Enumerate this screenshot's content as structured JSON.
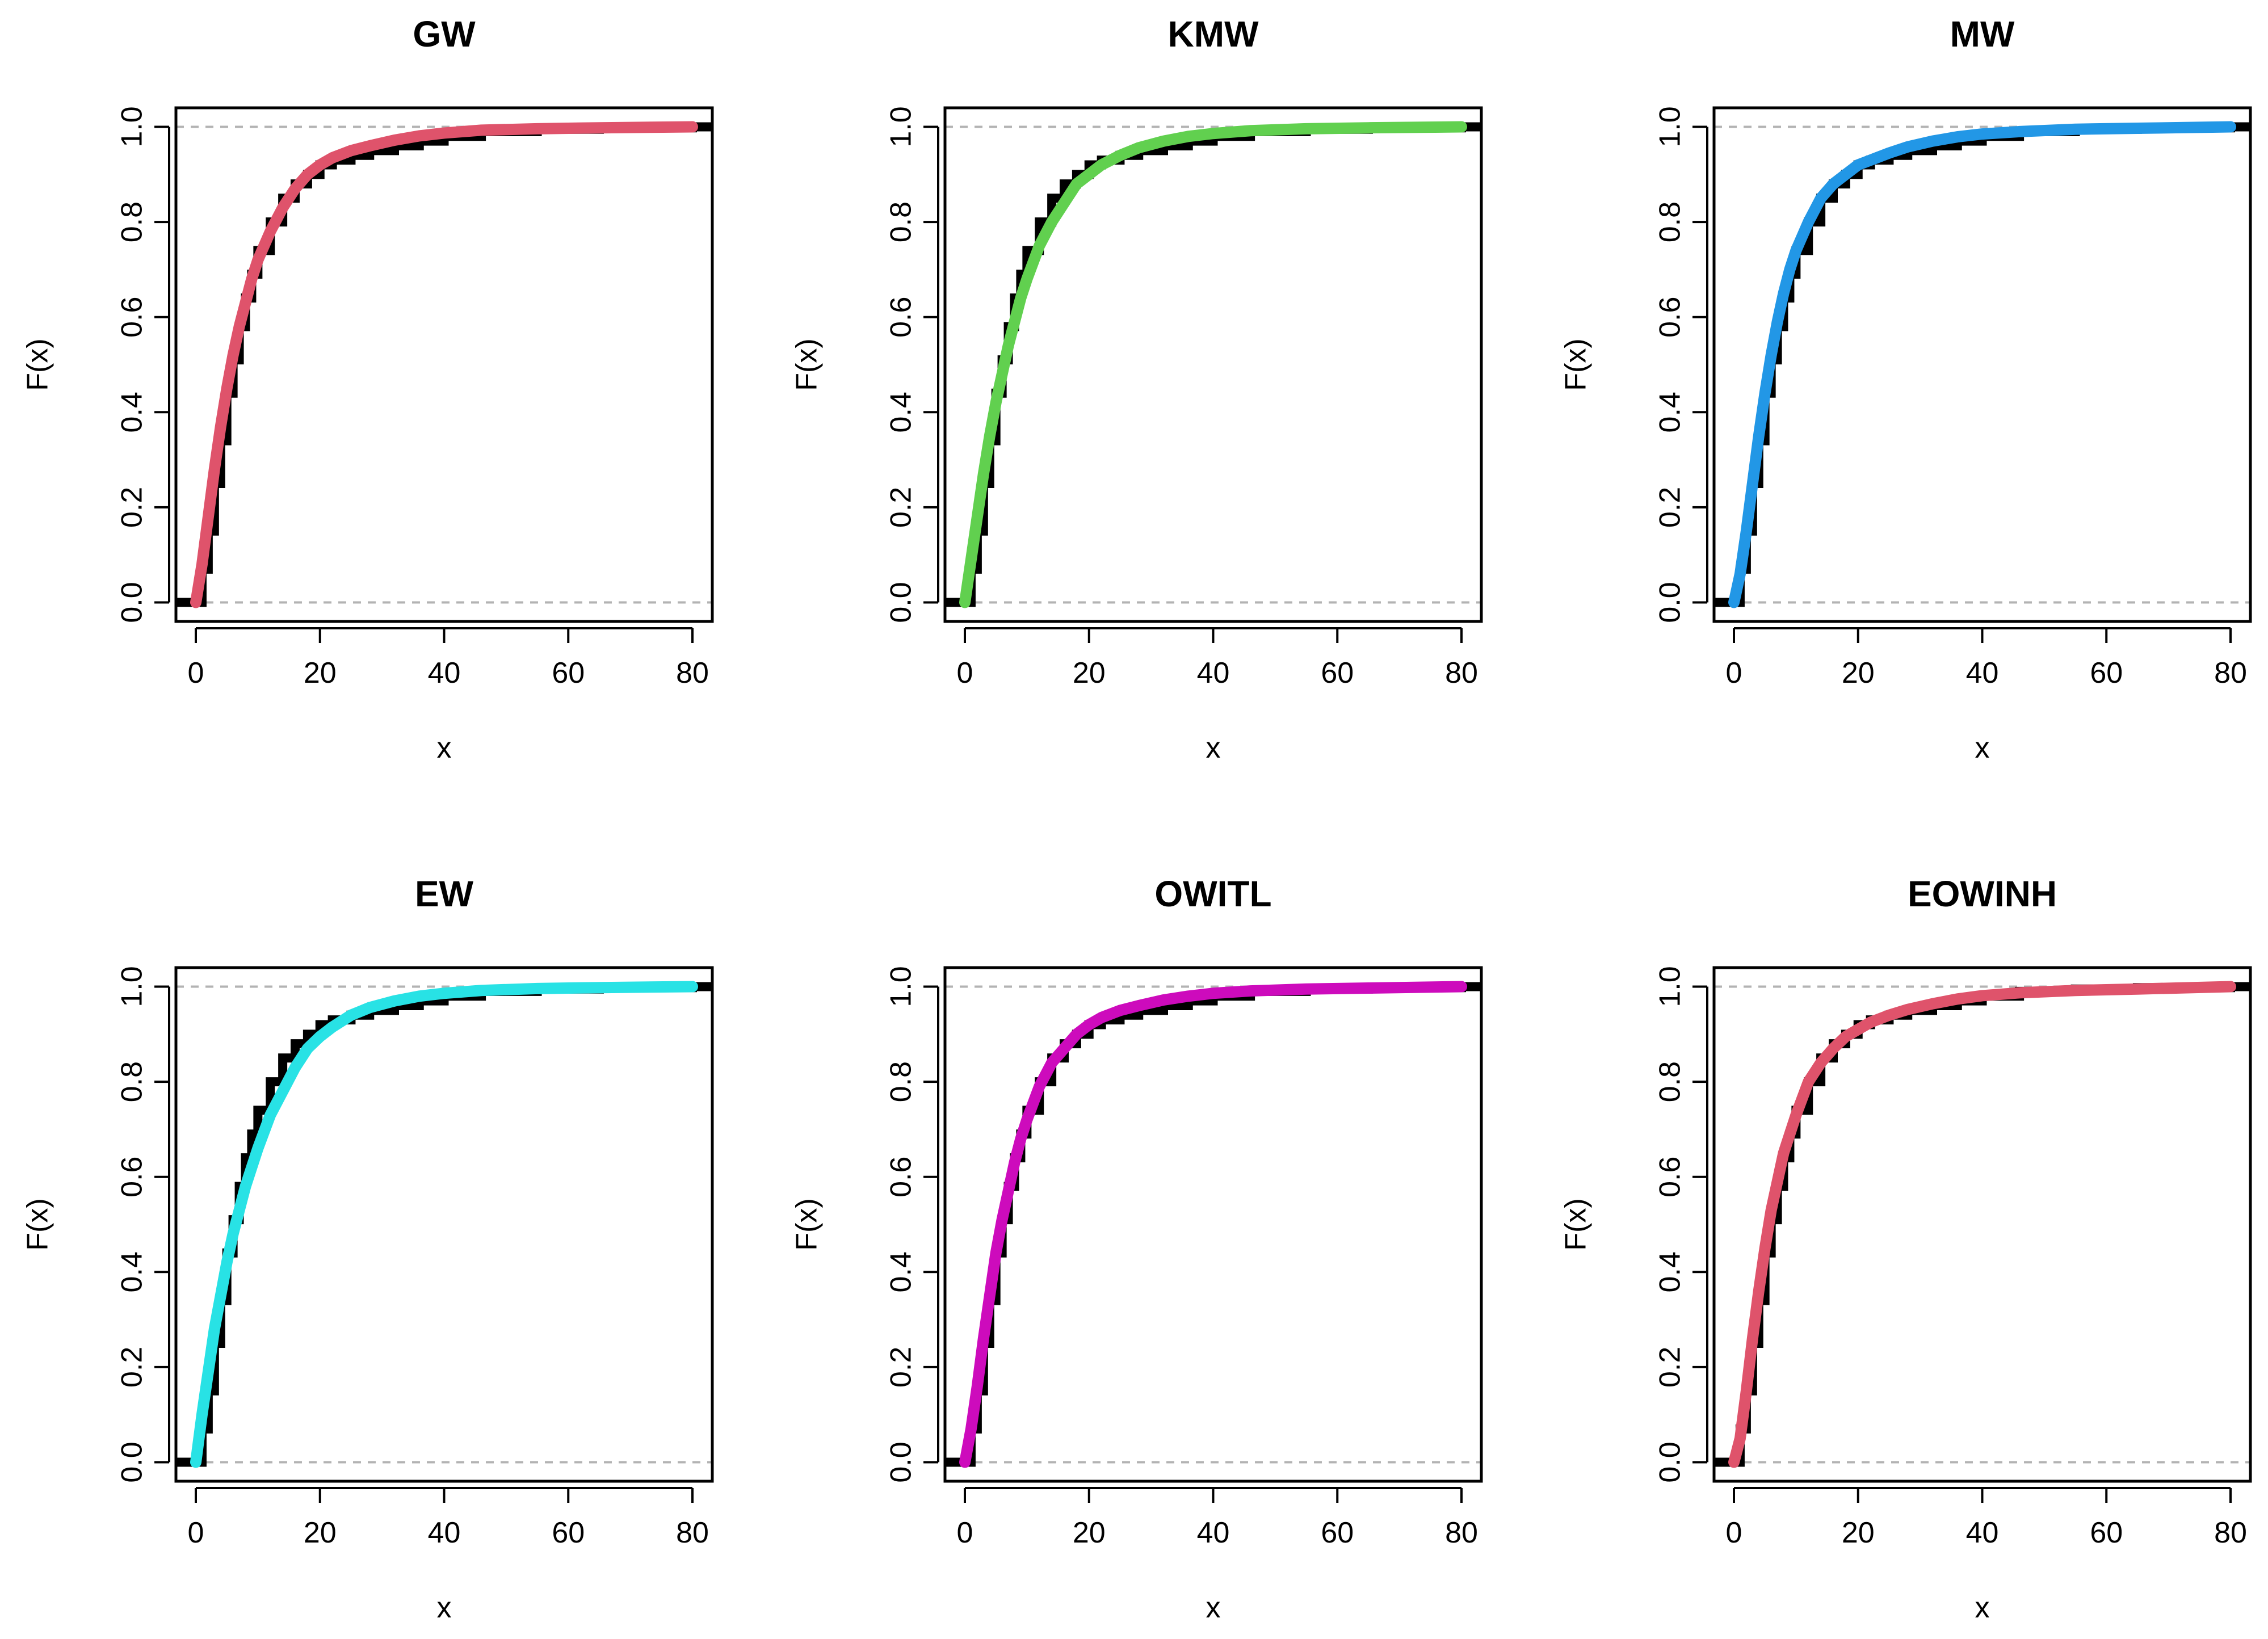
{
  "chart_data": [
    {
      "type": "line",
      "title": "GW",
      "xlabel": "x",
      "ylabel": "F(x)",
      "xlim": [
        0,
        80
      ],
      "ylim": [
        0,
        1
      ],
      "x_ticks": [
        0,
        20,
        40,
        60,
        80
      ],
      "y_ticks": [
        0.0,
        0.2,
        0.4,
        0.6,
        0.8,
        1.0
      ],
      "x_tick_labels": [
        "0",
        "20",
        "40",
        "60",
        "80"
      ],
      "y_tick_labels": [
        "0.0",
        "0.2",
        "0.4",
        "0.6",
        "0.8",
        "1.0"
      ],
      "reference_lines": [
        0,
        1
      ],
      "series": [
        {
          "name": "Empirical CDF",
          "color": "#000000",
          "x": [
            0,
            1,
            2,
            3,
            4,
            5,
            6,
            7,
            8,
            9,
            10,
            12,
            14,
            16,
            18,
            20,
            22,
            25,
            28,
            32,
            36,
            40,
            46,
            55,
            65,
            80
          ],
          "y": [
            0.0,
            0.07,
            0.15,
            0.25,
            0.34,
            0.44,
            0.51,
            0.58,
            0.64,
            0.69,
            0.74,
            0.8,
            0.85,
            0.88,
            0.9,
            0.92,
            0.93,
            0.94,
            0.95,
            0.96,
            0.97,
            0.98,
            0.99,
            0.995,
            0.998,
            1.0
          ]
        },
        {
          "name": "GW",
          "color": "#df536b",
          "x": [
            0,
            1,
            2,
            3,
            4,
            5,
            6,
            7,
            8,
            9,
            10,
            12,
            14,
            16,
            18,
            20,
            22,
            25,
            28,
            32,
            36,
            40,
            46,
            55,
            65,
            80
          ],
          "y": [
            0.0,
            0.08,
            0.18,
            0.28,
            0.37,
            0.45,
            0.52,
            0.58,
            0.63,
            0.68,
            0.72,
            0.78,
            0.83,
            0.87,
            0.9,
            0.92,
            0.935,
            0.95,
            0.96,
            0.972,
            0.981,
            0.987,
            0.993,
            0.996,
            0.998,
            1.0
          ]
        }
      ]
    },
    {
      "type": "line",
      "title": "KMW",
      "xlabel": "x",
      "ylabel": "F(x)",
      "xlim": [
        0,
        80
      ],
      "ylim": [
        0,
        1
      ],
      "x_ticks": [
        0,
        20,
        40,
        60,
        80
      ],
      "y_ticks": [
        0.0,
        0.2,
        0.4,
        0.6,
        0.8,
        1.0
      ],
      "x_tick_labels": [
        "0",
        "20",
        "40",
        "60",
        "80"
      ],
      "y_tick_labels": [
        "0.0",
        "0.2",
        "0.4",
        "0.6",
        "0.8",
        "1.0"
      ],
      "reference_lines": [
        0,
        1
      ],
      "series": [
        {
          "name": "Empirical CDF",
          "color": "#000000",
          "x": [
            0,
            1,
            2,
            3,
            4,
            5,
            6,
            7,
            8,
            9,
            10,
            12,
            14,
            16,
            18,
            20,
            22,
            25,
            28,
            32,
            36,
            40,
            46,
            55,
            65,
            80
          ],
          "y": [
            0.0,
            0.07,
            0.15,
            0.25,
            0.34,
            0.44,
            0.51,
            0.58,
            0.64,
            0.69,
            0.74,
            0.8,
            0.85,
            0.88,
            0.9,
            0.92,
            0.93,
            0.94,
            0.95,
            0.96,
            0.97,
            0.98,
            0.99,
            0.995,
            0.998,
            1.0
          ]
        },
        {
          "name": "KMW",
          "color": "#61d04f",
          "x": [
            0,
            1,
            2,
            3,
            4,
            5,
            6,
            7,
            8,
            9,
            10,
            12,
            14,
            16,
            18,
            20,
            22,
            25,
            28,
            32,
            36,
            40,
            46,
            55,
            65,
            80
          ],
          "y": [
            0.0,
            0.09,
            0.18,
            0.27,
            0.35,
            0.42,
            0.48,
            0.54,
            0.59,
            0.64,
            0.68,
            0.75,
            0.8,
            0.84,
            0.88,
            0.9,
            0.92,
            0.94,
            0.956,
            0.97,
            0.98,
            0.986,
            0.992,
            0.996,
            0.998,
            1.0
          ]
        }
      ]
    },
    {
      "type": "line",
      "title": "MW",
      "xlabel": "x",
      "ylabel": "F(x)",
      "xlim": [
        0,
        80
      ],
      "ylim": [
        0,
        1
      ],
      "x_ticks": [
        0,
        20,
        40,
        60,
        80
      ],
      "y_ticks": [
        0.0,
        0.2,
        0.4,
        0.6,
        0.8,
        1.0
      ],
      "x_tick_labels": [
        "0",
        "20",
        "40",
        "60",
        "80"
      ],
      "y_tick_labels": [
        "0.0",
        "0.2",
        "0.4",
        "0.6",
        "0.8",
        "1.0"
      ],
      "reference_lines": [
        0,
        1
      ],
      "series": [
        {
          "name": "Empirical CDF",
          "color": "#000000",
          "x": [
            0,
            1,
            2,
            3,
            4,
            5,
            6,
            7,
            8,
            9,
            10,
            12,
            14,
            16,
            18,
            20,
            22,
            25,
            28,
            32,
            36,
            40,
            46,
            55,
            65,
            80
          ],
          "y": [
            0.0,
            0.07,
            0.15,
            0.25,
            0.34,
            0.44,
            0.51,
            0.58,
            0.64,
            0.69,
            0.74,
            0.8,
            0.85,
            0.88,
            0.9,
            0.92,
            0.93,
            0.94,
            0.95,
            0.96,
            0.97,
            0.98,
            0.99,
            0.995,
            0.998,
            1.0
          ]
        },
        {
          "name": "MW",
          "color": "#2297e6",
          "x": [
            0,
            1,
            2,
            3,
            4,
            5,
            6,
            7,
            8,
            9,
            10,
            12,
            14,
            16,
            18,
            20,
            22,
            25,
            28,
            32,
            36,
            40,
            46,
            55,
            65,
            80
          ],
          "y": [
            0.0,
            0.06,
            0.15,
            0.25,
            0.35,
            0.44,
            0.52,
            0.59,
            0.65,
            0.7,
            0.74,
            0.8,
            0.85,
            0.88,
            0.9,
            0.92,
            0.93,
            0.945,
            0.958,
            0.97,
            0.979,
            0.985,
            0.99,
            0.995,
            0.997,
            1.0
          ]
        }
      ]
    },
    {
      "type": "line",
      "title": "EW",
      "xlabel": "x",
      "ylabel": "F(x)",
      "xlim": [
        0,
        80
      ],
      "ylim": [
        0,
        1
      ],
      "x_ticks": [
        0,
        20,
        40,
        60,
        80
      ],
      "y_ticks": [
        0.0,
        0.2,
        0.4,
        0.6,
        0.8,
        1.0
      ],
      "x_tick_labels": [
        "0",
        "20",
        "40",
        "60",
        "80"
      ],
      "y_tick_labels": [
        "0.0",
        "0.2",
        "0.4",
        "0.6",
        "0.8",
        "1.0"
      ],
      "reference_lines": [
        0,
        1
      ],
      "series": [
        {
          "name": "Empirical CDF",
          "color": "#000000",
          "x": [
            0,
            1,
            2,
            3,
            4,
            5,
            6,
            7,
            8,
            9,
            10,
            12,
            14,
            16,
            18,
            20,
            22,
            25,
            28,
            32,
            36,
            40,
            46,
            55,
            65,
            80
          ],
          "y": [
            0.0,
            0.07,
            0.15,
            0.25,
            0.34,
            0.44,
            0.51,
            0.58,
            0.64,
            0.69,
            0.74,
            0.8,
            0.85,
            0.88,
            0.9,
            0.92,
            0.93,
            0.94,
            0.95,
            0.96,
            0.97,
            0.98,
            0.99,
            0.995,
            0.998,
            1.0
          ]
        },
        {
          "name": "EW",
          "color": "#28e2e5",
          "x": [
            0,
            1,
            2,
            3,
            4,
            5,
            6,
            7,
            8,
            9,
            10,
            12,
            14,
            16,
            18,
            20,
            22,
            25,
            28,
            32,
            36,
            40,
            46,
            55,
            65,
            80
          ],
          "y": [
            0.0,
            0.1,
            0.19,
            0.28,
            0.35,
            0.42,
            0.48,
            0.53,
            0.58,
            0.62,
            0.66,
            0.73,
            0.78,
            0.83,
            0.87,
            0.895,
            0.915,
            0.94,
            0.956,
            0.97,
            0.98,
            0.986,
            0.992,
            0.996,
            0.998,
            1.0
          ]
        }
      ]
    },
    {
      "type": "line",
      "title": "OWITL",
      "xlabel": "x",
      "ylabel": "F(x)",
      "xlim": [
        0,
        80
      ],
      "ylim": [
        0,
        1
      ],
      "x_ticks": [
        0,
        20,
        40,
        60,
        80
      ],
      "y_ticks": [
        0.0,
        0.2,
        0.4,
        0.6,
        0.8,
        1.0
      ],
      "x_tick_labels": [
        "0",
        "20",
        "40",
        "60",
        "80"
      ],
      "y_tick_labels": [
        "0.0",
        "0.2",
        "0.4",
        "0.6",
        "0.8",
        "1.0"
      ],
      "reference_lines": [
        0,
        1
      ],
      "series": [
        {
          "name": "Empirical CDF",
          "color": "#000000",
          "x": [
            0,
            1,
            2,
            3,
            4,
            5,
            6,
            7,
            8,
            9,
            10,
            12,
            14,
            16,
            18,
            20,
            22,
            25,
            28,
            32,
            36,
            40,
            46,
            55,
            65,
            80
          ],
          "y": [
            0.0,
            0.07,
            0.15,
            0.25,
            0.34,
            0.44,
            0.51,
            0.58,
            0.64,
            0.69,
            0.74,
            0.8,
            0.85,
            0.88,
            0.9,
            0.92,
            0.93,
            0.94,
            0.95,
            0.96,
            0.97,
            0.98,
            0.99,
            0.995,
            0.998,
            1.0
          ]
        },
        {
          "name": "OWITL",
          "color": "#cd0bbc",
          "x": [
            0,
            1,
            2,
            3,
            4,
            5,
            6,
            7,
            8,
            9,
            10,
            12,
            14,
            16,
            18,
            20,
            22,
            25,
            28,
            32,
            36,
            40,
            46,
            55,
            65,
            80
          ],
          "y": [
            0.0,
            0.07,
            0.16,
            0.26,
            0.35,
            0.44,
            0.51,
            0.57,
            0.63,
            0.68,
            0.72,
            0.79,
            0.84,
            0.87,
            0.9,
            0.92,
            0.935,
            0.95,
            0.96,
            0.972,
            0.98,
            0.986,
            0.991,
            0.995,
            0.997,
            1.0
          ]
        }
      ]
    },
    {
      "type": "line",
      "title": "EOWINH",
      "xlabel": "x",
      "ylabel": "F(x)",
      "xlim": [
        0,
        80
      ],
      "ylim": [
        0,
        1
      ],
      "x_ticks": [
        0,
        20,
        40,
        60,
        80
      ],
      "y_ticks": [
        0.0,
        0.2,
        0.4,
        0.6,
        0.8,
        1.0
      ],
      "x_tick_labels": [
        "0",
        "20",
        "40",
        "60",
        "80"
      ],
      "y_tick_labels": [
        "0.0",
        "0.2",
        "0.4",
        "0.6",
        "0.8",
        "1.0"
      ],
      "reference_lines": [
        0,
        1
      ],
      "series": [
        {
          "name": "Empirical CDF",
          "color": "#000000",
          "x": [
            0,
            1,
            2,
            3,
            4,
            5,
            6,
            7,
            8,
            9,
            10,
            12,
            14,
            16,
            18,
            20,
            22,
            25,
            28,
            32,
            36,
            40,
            46,
            55,
            65,
            80
          ],
          "y": [
            0.0,
            0.07,
            0.15,
            0.25,
            0.34,
            0.44,
            0.51,
            0.58,
            0.64,
            0.69,
            0.74,
            0.8,
            0.85,
            0.88,
            0.9,
            0.92,
            0.93,
            0.94,
            0.95,
            0.96,
            0.97,
            0.98,
            0.99,
            0.995,
            0.998,
            1.0
          ]
        },
        {
          "name": "EOWINH",
          "color": "#df536b",
          "x": [
            0,
            1,
            2,
            3,
            4,
            5,
            6,
            7,
            8,
            9,
            10,
            12,
            14,
            16,
            18,
            20,
            22,
            25,
            28,
            32,
            36,
            40,
            46,
            55,
            65,
            80
          ],
          "y": [
            0.0,
            0.05,
            0.15,
            0.26,
            0.36,
            0.45,
            0.53,
            0.59,
            0.65,
            0.69,
            0.73,
            0.8,
            0.84,
            0.87,
            0.895,
            0.91,
            0.925,
            0.94,
            0.952,
            0.964,
            0.974,
            0.981,
            0.987,
            0.992,
            0.995,
            1.0
          ]
        }
      ]
    }
  ]
}
